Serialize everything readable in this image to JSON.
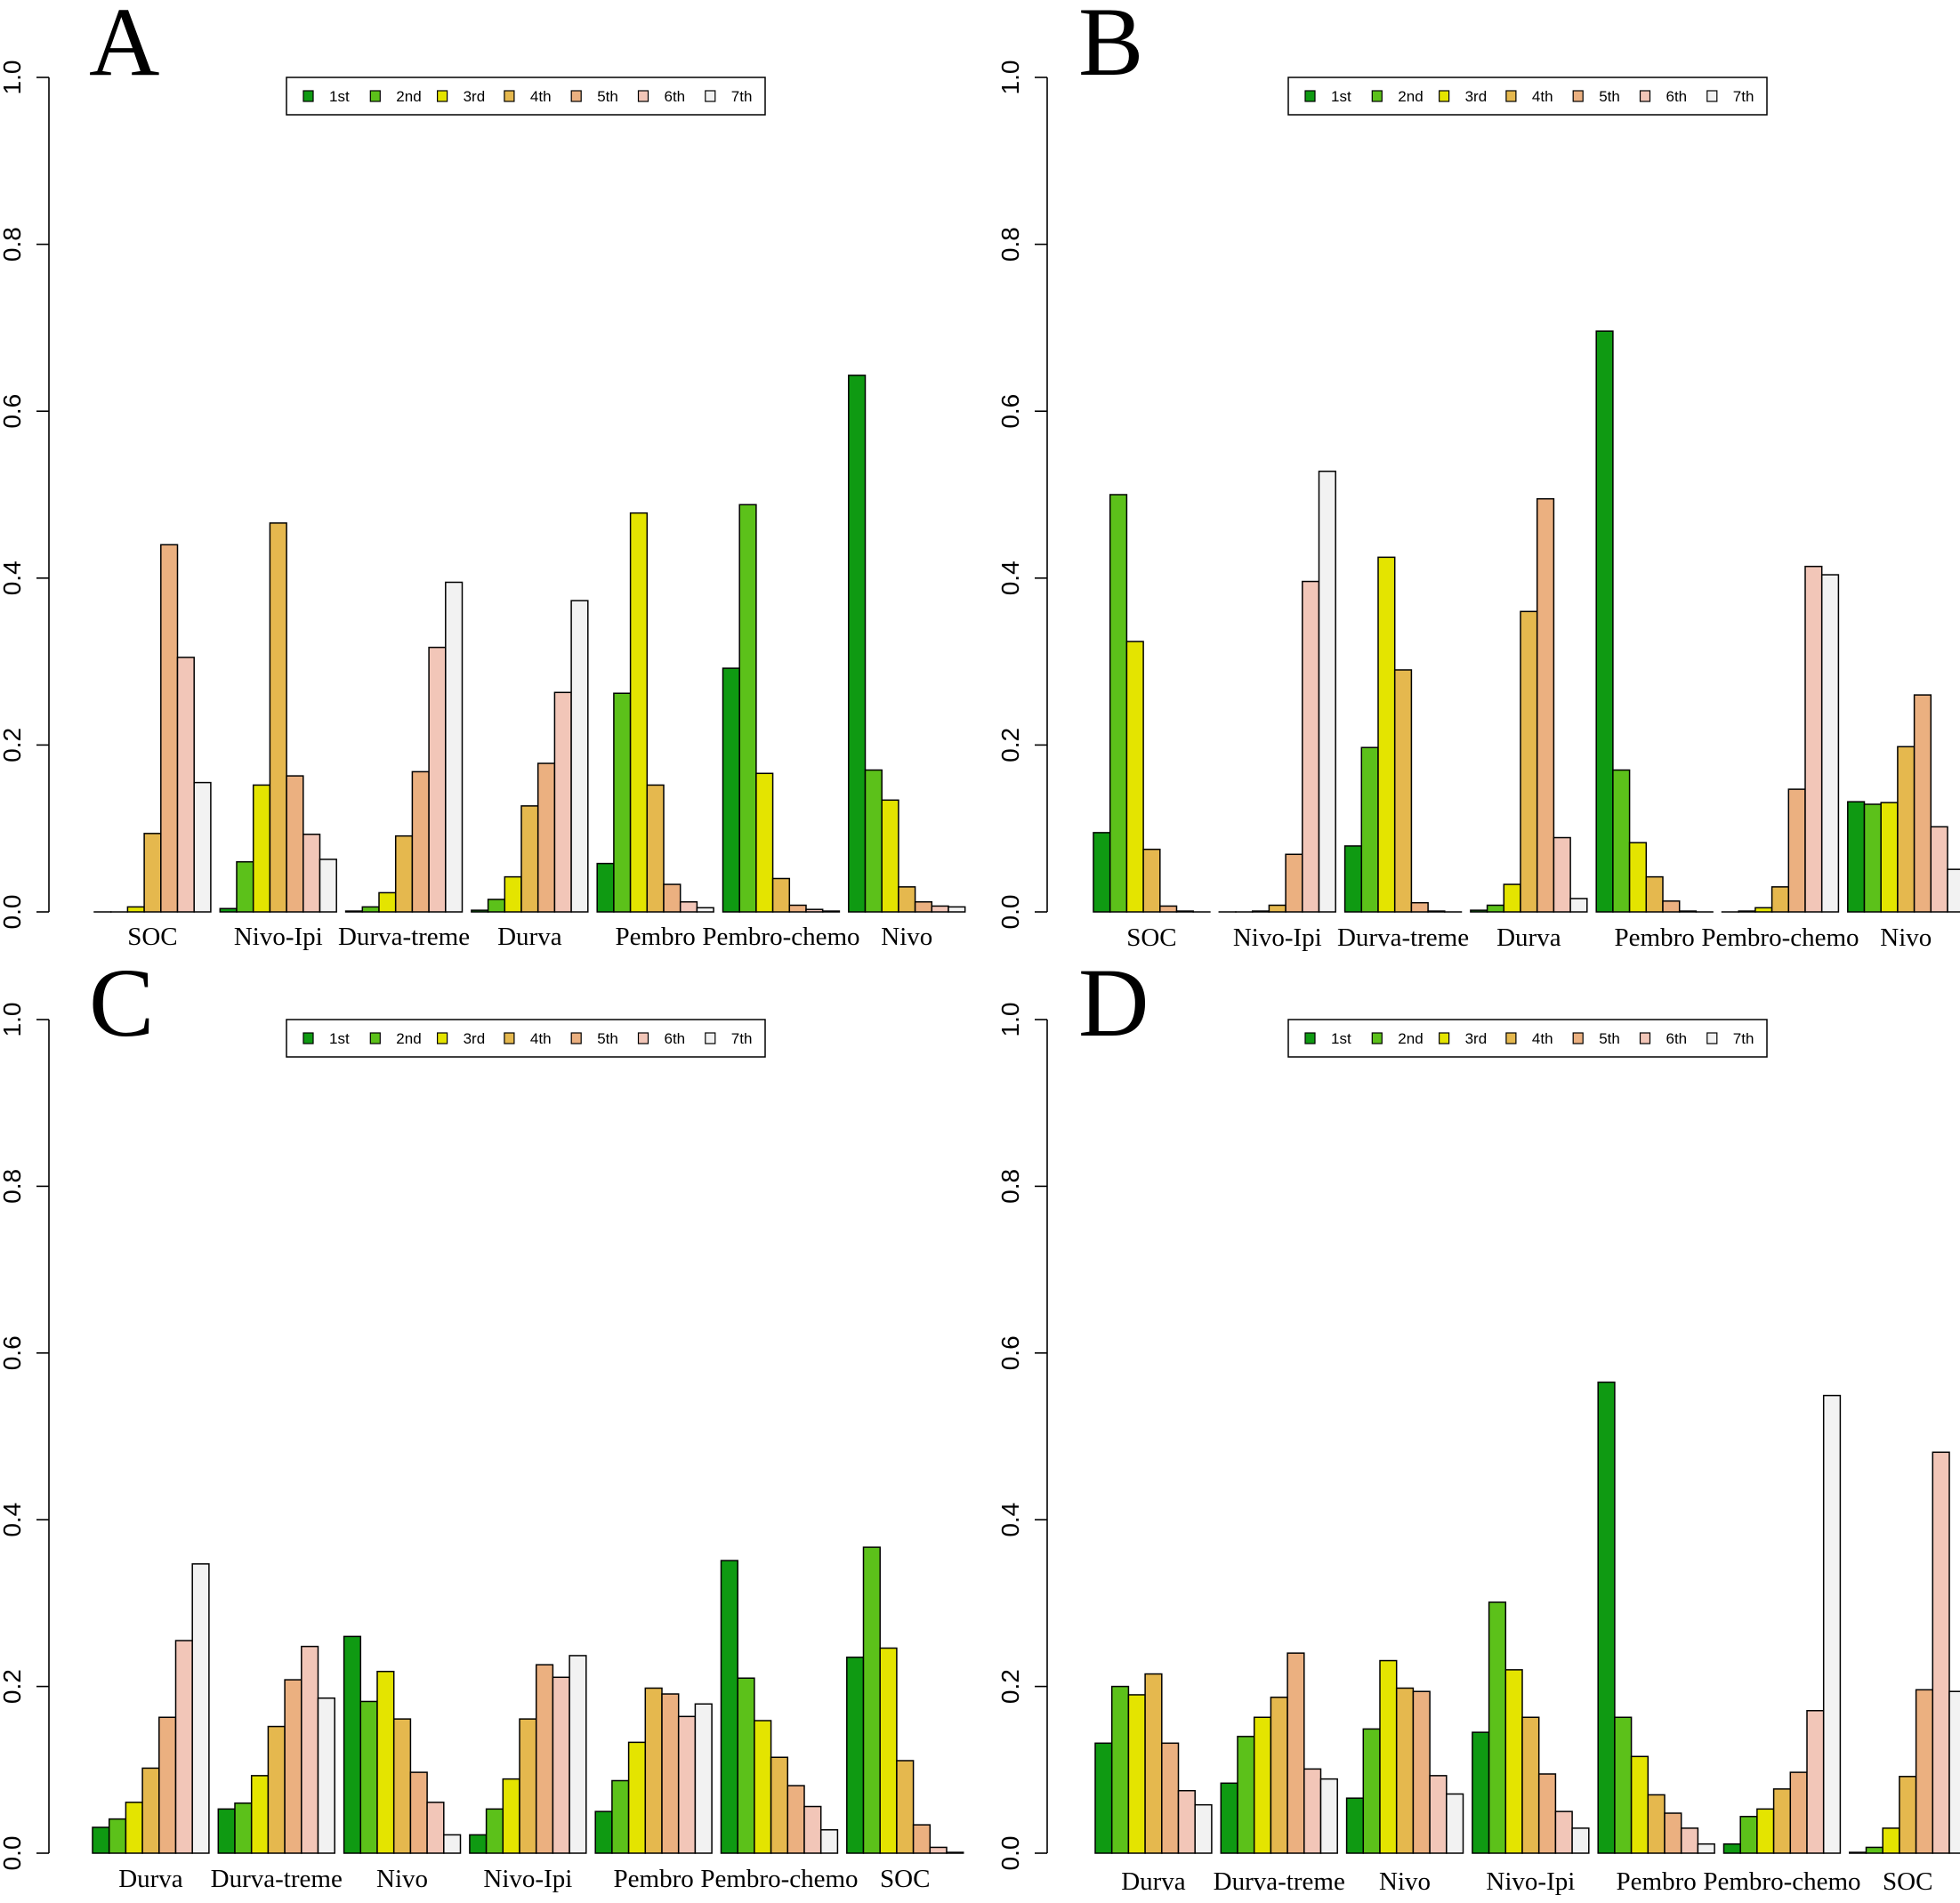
{
  "legend_labels": [
    "1st",
    "2nd",
    "3rd",
    "4th",
    "5th",
    "6th",
    "7th"
  ],
  "colors": [
    "#0f9a12",
    "#5cc11a",
    "#e4e400",
    "#e5b84e",
    "#ebb080",
    "#f2c6b8",
    "#f2f2f2"
  ],
  "y_ticks": [
    "0.0",
    "0.2",
    "0.4",
    "0.6",
    "0.8",
    "1.0"
  ],
  "chart_data": [
    {
      "panel": "A",
      "type": "bar",
      "categories": [
        "SOC",
        "Nivo-Ipi",
        "Durva-treme",
        "Durva",
        "Pembro",
        "Pembro-chemo",
        "Nivo"
      ],
      "series_names": [
        "1st",
        "2nd",
        "3rd",
        "4th",
        "5th",
        "6th",
        "7th"
      ],
      "values": [
        [
          0.0,
          0.0,
          0.006,
          0.094,
          0.44,
          0.305,
          0.155
        ],
        [
          0.004,
          0.06,
          0.152,
          0.466,
          0.163,
          0.093,
          0.063
        ],
        [
          0.001,
          0.006,
          0.023,
          0.091,
          0.168,
          0.317,
          0.395
        ],
        [
          0.002,
          0.015,
          0.042,
          0.127,
          0.178,
          0.263,
          0.373
        ],
        [
          0.058,
          0.262,
          0.478,
          0.152,
          0.033,
          0.012,
          0.005
        ],
        [
          0.292,
          0.488,
          0.166,
          0.04,
          0.008,
          0.003,
          0.001
        ],
        [
          0.643,
          0.17,
          0.134,
          0.03,
          0.012,
          0.007,
          0.006
        ]
      ],
      "ylim": [
        0,
        1
      ],
      "legend_position": "top-center"
    },
    {
      "panel": "B",
      "type": "bar",
      "categories": [
        "SOC",
        "Nivo-Ipi",
        "Durva-treme",
        "Durva",
        "Pembro",
        "Pembro-chemo",
        "Nivo"
      ],
      "series_names": [
        "1st",
        "2nd",
        "3rd",
        "4th",
        "5th",
        "6th",
        "7th"
      ],
      "values": [
        [
          0.095,
          0.5,
          0.324,
          0.075,
          0.007,
          0.001,
          0.0
        ],
        [
          0.0,
          0.0,
          0.001,
          0.008,
          0.069,
          0.396,
          0.528
        ],
        [
          0.079,
          0.197,
          0.425,
          0.29,
          0.011,
          0.001,
          0.0
        ],
        [
          0.002,
          0.008,
          0.033,
          0.36,
          0.495,
          0.089,
          0.016
        ],
        [
          0.696,
          0.17,
          0.083,
          0.042,
          0.013,
          0.001,
          0.0
        ],
        [
          0.0,
          0.001,
          0.005,
          0.03,
          0.147,
          0.414,
          0.404
        ],
        [
          0.132,
          0.129,
          0.131,
          0.198,
          0.26,
          0.102,
          0.051
        ]
      ],
      "ylim": [
        0,
        1
      ],
      "legend_position": "top-center"
    },
    {
      "panel": "C",
      "type": "bar",
      "categories": [
        "Durva",
        "Durva-treme",
        "Nivo",
        "Nivo-Ipi",
        "Pembro",
        "Pembro-chemo",
        "SOC"
      ],
      "series_names": [
        "1st",
        "2nd",
        "3rd",
        "4th",
        "5th",
        "6th",
        "7th"
      ],
      "values": [
        [
          0.031,
          0.041,
          0.061,
          0.102,
          0.163,
          0.255,
          0.347
        ],
        [
          0.053,
          0.06,
          0.093,
          0.152,
          0.208,
          0.248,
          0.186
        ],
        [
          0.26,
          0.182,
          0.218,
          0.161,
          0.097,
          0.061,
          0.022
        ],
        [
          0.022,
          0.053,
          0.089,
          0.161,
          0.226,
          0.211,
          0.237
        ],
        [
          0.05,
          0.087,
          0.133,
          0.198,
          0.191,
          0.164,
          0.179
        ],
        [
          0.351,
          0.21,
          0.159,
          0.115,
          0.081,
          0.056,
          0.028
        ],
        [
          0.235,
          0.367,
          0.246,
          0.111,
          0.034,
          0.007,
          0.001
        ]
      ],
      "ylim": [
        0,
        1
      ],
      "legend_position": "top-center"
    },
    {
      "panel": "D",
      "type": "bar",
      "categories": [
        "Durva",
        "Durva-treme",
        "Nivo",
        "Nivo-Ipi",
        "Pembro",
        "Pembro-chemo",
        "SOC"
      ],
      "series_names": [
        "1st",
        "2nd",
        "3rd",
        "4th",
        "5th",
        "6th",
        "7th"
      ],
      "values": [
        [
          0.132,
          0.2,
          0.19,
          0.215,
          0.132,
          0.075,
          0.058
        ],
        [
          0.084,
          0.14,
          0.163,
          0.187,
          0.24,
          0.101,
          0.089
        ],
        [
          0.066,
          0.149,
          0.231,
          0.198,
          0.194,
          0.093,
          0.071
        ],
        [
          0.145,
          0.301,
          0.22,
          0.163,
          0.095,
          0.05,
          0.03
        ],
        [
          0.565,
          0.163,
          0.116,
          0.07,
          0.048,
          0.03,
          0.011
        ],
        [
          0.011,
          0.044,
          0.053,
          0.077,
          0.097,
          0.171,
          0.549
        ],
        [
          0.001,
          0.007,
          0.03,
          0.092,
          0.196,
          0.481,
          0.194
        ]
      ],
      "ylim": [
        0,
        1
      ],
      "legend_position": "top-center"
    }
  ]
}
